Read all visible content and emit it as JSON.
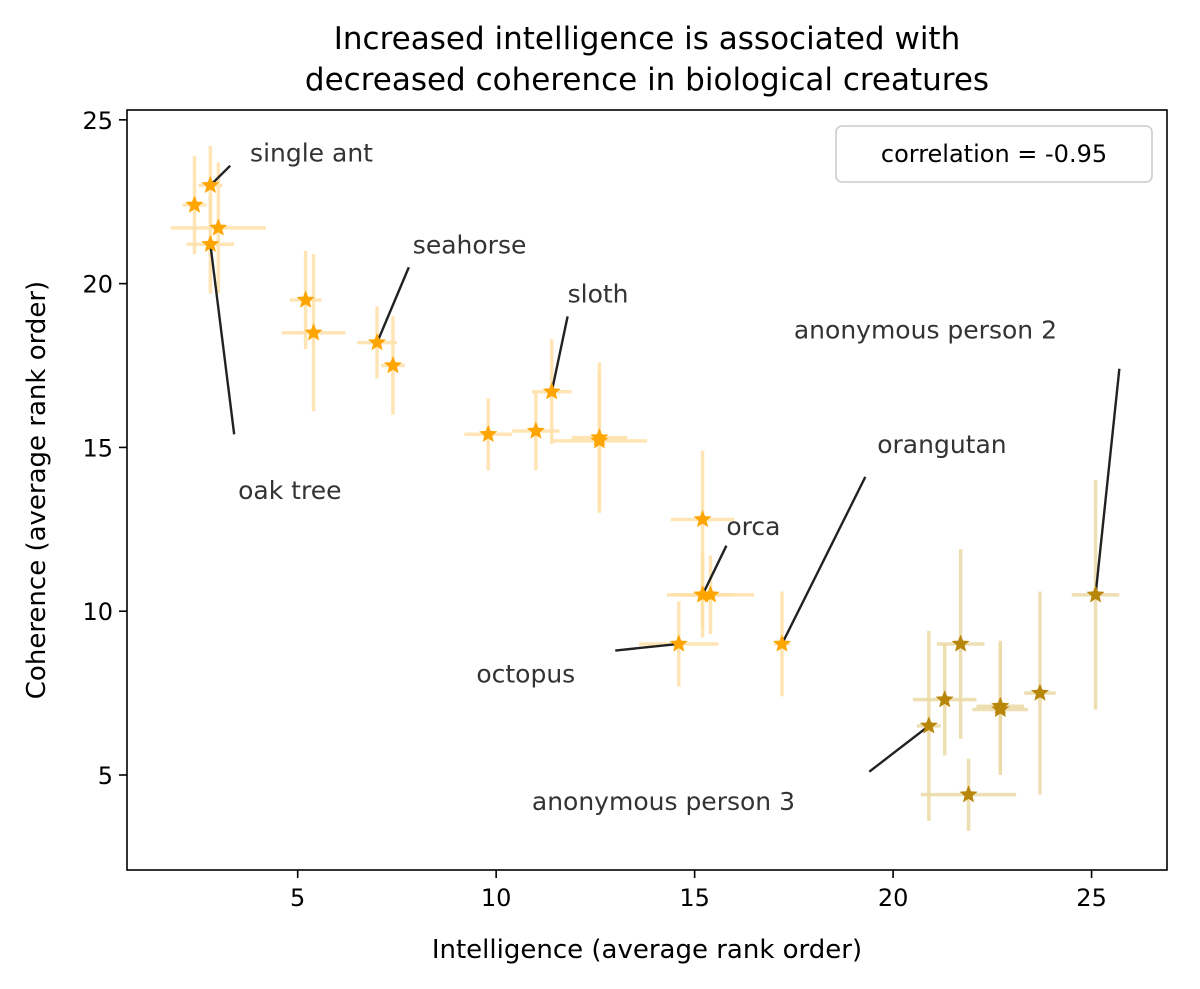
{
  "chart_data": {
    "type": "scatter",
    "title_lines": [
      "Increased intelligence is associated with",
      "decreased coherence in biological creatures"
    ],
    "xlabel": "Intelligence (average rank order)",
    "ylabel": "Coherence (average rank order)",
    "xlim": [
      0.7,
      26.9
    ],
    "ylim": [
      2.1,
      25.3
    ],
    "xticks": [
      5,
      10,
      15,
      20,
      25
    ],
    "yticks": [
      5,
      10,
      15,
      20,
      25
    ],
    "legend": {
      "text": "correlation = -0.95",
      "placement": "top-right"
    },
    "colors": {
      "animal": "#FFA500",
      "human": "#B8860B",
      "animal_err": "#FFE0A8",
      "human_err": "#EBD9A6",
      "line": "#222222"
    },
    "series": [
      {
        "name": "animals",
        "color": "#FFA500",
        "points": [
          {
            "x": 2.8,
            "y": 23.0,
            "xerr": 0.3,
            "yerr": 1.2
          },
          {
            "x": 2.4,
            "y": 22.4,
            "xerr": 0.3,
            "yerr": 1.5
          },
          {
            "x": 3.0,
            "y": 21.7,
            "xerr": 1.2,
            "yerr": 2.0
          },
          {
            "x": 2.8,
            "y": 21.2,
            "xerr": 0.6,
            "yerr": 1.5
          },
          {
            "x": 5.2,
            "y": 19.5,
            "xerr": 0.4,
            "yerr": 1.5
          },
          {
            "x": 5.4,
            "y": 18.5,
            "xerr": 0.8,
            "yerr": 2.4
          },
          {
            "x": 7.0,
            "y": 18.2,
            "xerr": 0.5,
            "yerr": 1.1
          },
          {
            "x": 7.4,
            "y": 17.5,
            "xerr": 0.3,
            "yerr": 1.5
          },
          {
            "x": 11.4,
            "y": 16.7,
            "xerr": 0.5,
            "yerr": 1.6
          },
          {
            "x": 9.8,
            "y": 15.4,
            "xerr": 0.6,
            "yerr": 1.1
          },
          {
            "x": 11.0,
            "y": 15.5,
            "xerr": 0.6,
            "yerr": 1.2
          },
          {
            "x": 12.6,
            "y": 15.3,
            "xerr": 0.7,
            "yerr": 2.3
          },
          {
            "x": 12.6,
            "y": 15.2,
            "xerr": 1.2,
            "yerr": 2.1
          },
          {
            "x": 15.2,
            "y": 12.8,
            "xerr": 0.8,
            "yerr": 2.1
          },
          {
            "x": 15.2,
            "y": 10.5,
            "xerr": 0.8,
            "yerr": 1.3
          },
          {
            "x": 15.4,
            "y": 10.5,
            "xerr": 1.1,
            "yerr": 1.2
          },
          {
            "x": 15.2,
            "y": 10.5,
            "xerr": 0.5,
            "yerr": 1.0
          },
          {
            "x": 14.6,
            "y": 9.0,
            "xerr": 1.0,
            "yerr": 1.3
          },
          {
            "x": 17.2,
            "y": 9.0,
            "xerr": 0.2,
            "yerr": 1.6
          }
        ]
      },
      {
        "name": "humans",
        "color": "#B8860B",
        "points": [
          {
            "x": 21.7,
            "y": 9.0,
            "xerr": 0.6,
            "yerr": 2.9
          },
          {
            "x": 21.3,
            "y": 7.3,
            "xerr": 0.8,
            "yerr": 1.7
          },
          {
            "x": 20.9,
            "y": 6.5,
            "xerr": 0.3,
            "yerr": 2.9
          },
          {
            "x": 22.7,
            "y": 7.1,
            "xerr": 0.6,
            "yerr": 2.0
          },
          {
            "x": 22.7,
            "y": 7.0,
            "xerr": 0.7,
            "yerr": 2.0
          },
          {
            "x": 23.7,
            "y": 7.5,
            "xerr": 0.4,
            "yerr": 3.1
          },
          {
            "x": 21.9,
            "y": 4.4,
            "xerr": 1.2,
            "yerr": 1.1
          },
          {
            "x": 25.1,
            "y": 10.5,
            "xerr": 0.6,
            "yerr": 3.5
          }
        ]
      }
    ],
    "annotations": [
      {
        "label": "single ant",
        "point": [
          2.8,
          23.0
        ],
        "text_at": [
          3.8,
          24.0
        ],
        "line_to": [
          3.3,
          23.6
        ]
      },
      {
        "label": "seahorse",
        "point": [
          7.0,
          18.2
        ],
        "text_at": [
          7.9,
          21.2
        ],
        "line_to": [
          7.8,
          20.5
        ]
      },
      {
        "label": "sloth",
        "point": [
          11.4,
          16.7
        ],
        "text_at": [
          11.8,
          19.7
        ],
        "line_to": [
          11.8,
          19.0
        ]
      },
      {
        "label": "oak tree",
        "point": [
          2.8,
          21.2
        ],
        "text_at": [
          3.5,
          13.7
        ],
        "line_to": [
          3.4,
          15.4
        ]
      },
      {
        "label": "anonymous person 2",
        "point": [
          25.1,
          10.5
        ],
        "text_at": [
          17.5,
          18.6
        ],
        "line_to": [
          25.7,
          17.4
        ]
      },
      {
        "label": "orangutan",
        "point": [
          17.2,
          9.0
        ],
        "text_at": [
          19.6,
          15.1
        ],
        "line_to": [
          19.3,
          14.1
        ]
      },
      {
        "label": "orca",
        "point": [
          15.2,
          10.5
        ],
        "text_at": [
          15.8,
          12.6
        ],
        "line_to": [
          15.8,
          12.0
        ]
      },
      {
        "label": "octopus",
        "point": [
          14.6,
          9.0
        ],
        "text_at": [
          9.5,
          8.1
        ],
        "line_to": [
          13.0,
          8.8
        ]
      },
      {
        "label": "anonymous person 3",
        "point": [
          20.9,
          6.5
        ],
        "text_at": [
          10.9,
          4.2
        ],
        "line_to": [
          19.4,
          5.1
        ]
      }
    ]
  }
}
